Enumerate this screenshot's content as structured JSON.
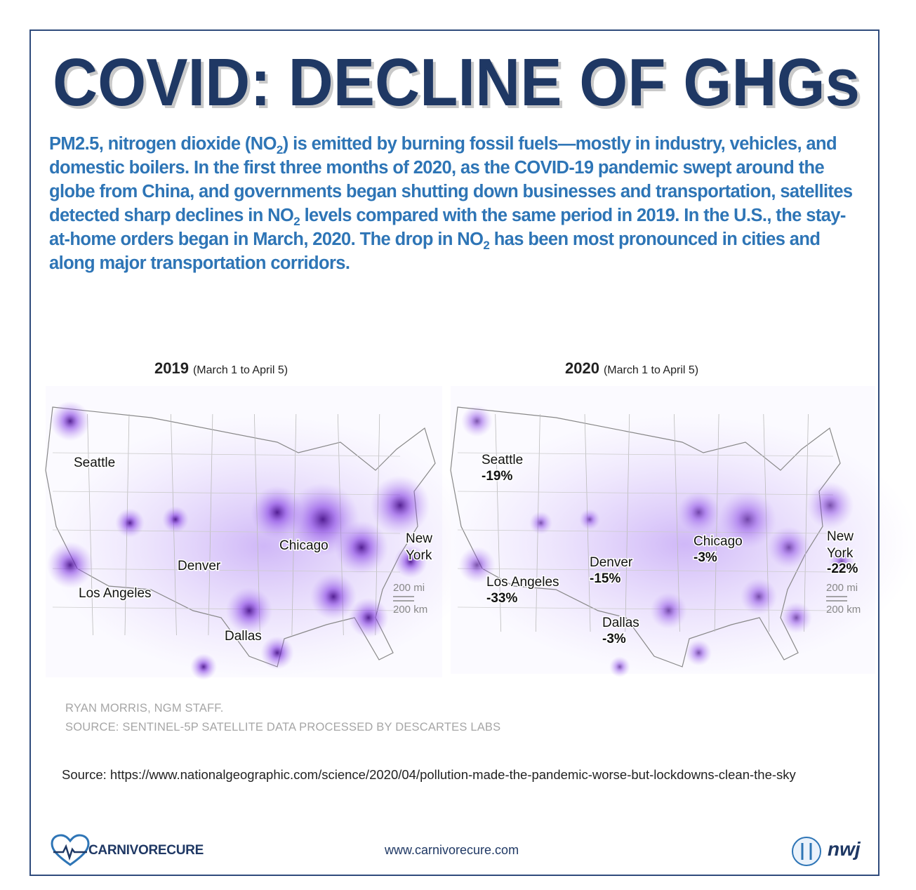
{
  "title": "COVID: DECLINE OF GHGs",
  "intro": [
    {
      "text": "PM2.5, nitrogen dioxide (NO"
    },
    {
      "sub": "2"
    },
    {
      "text": ") is emitted by burning fossil fuels—mostly in industry, vehicles, and domestic boilers. In the first three months of 2020, as the COVID-19 pandemic swept around the globe from China, and governments began shutting down businesses and transportation, satellites detected sharp declines in NO"
    },
    {
      "sub": "2"
    },
    {
      "text": " levels compared with the same period in 2019. In the U.S., the stay-at-home orders began in March, 2020. The drop in NO"
    },
    {
      "sub": "2"
    },
    {
      "text": " has been most pronounced in cities and along major transportation corridors."
    }
  ],
  "maps": [
    {
      "year": "2019",
      "period": "(March 1 to April 5)",
      "scale": [
        "200 mi",
        "200 km"
      ],
      "cities": [
        {
          "name": [
            "Seattle"
          ]
        },
        {
          "name": [
            "Denver"
          ]
        },
        {
          "name": [
            "Chicago"
          ]
        },
        {
          "name": [
            "New",
            "York"
          ]
        },
        {
          "name": [
            "Los Angeles"
          ]
        },
        {
          "name": [
            "Dallas"
          ]
        }
      ]
    },
    {
      "year": "2020",
      "period": "(March 1 to April 5)",
      "scale": [
        "200 mi",
        "200 km"
      ],
      "cities": [
        {
          "name": [
            "Seattle"
          ],
          "change": "-19%"
        },
        {
          "name": [
            "Denver"
          ],
          "change": "-15%"
        },
        {
          "name": [
            "Chicago"
          ],
          "change": "-3%"
        },
        {
          "name": [
            "New",
            "York"
          ],
          "change": "-22%"
        },
        {
          "name": [
            "Los Angeles"
          ],
          "change": "-33%"
        },
        {
          "name": [
            "Dallas"
          ],
          "change": "-3%"
        }
      ]
    }
  ],
  "credit": [
    "RYAN MORRIS, NGM STAFF.",
    "SOURCE: SENTINEL-5P SATELLITE DATA PROCESSED BY DESCARTES LABS"
  ],
  "source": {
    "label": "Source:",
    "url": "https://www.nationalgeographic.com/science/2020/04/pollution-made-the-pandemic-worse-but-lockdowns-clean-the-sky"
  },
  "footer": {
    "brand": "CARNIVORECURE",
    "website": "www.carnivorecure.com",
    "partner": "nwj"
  }
}
